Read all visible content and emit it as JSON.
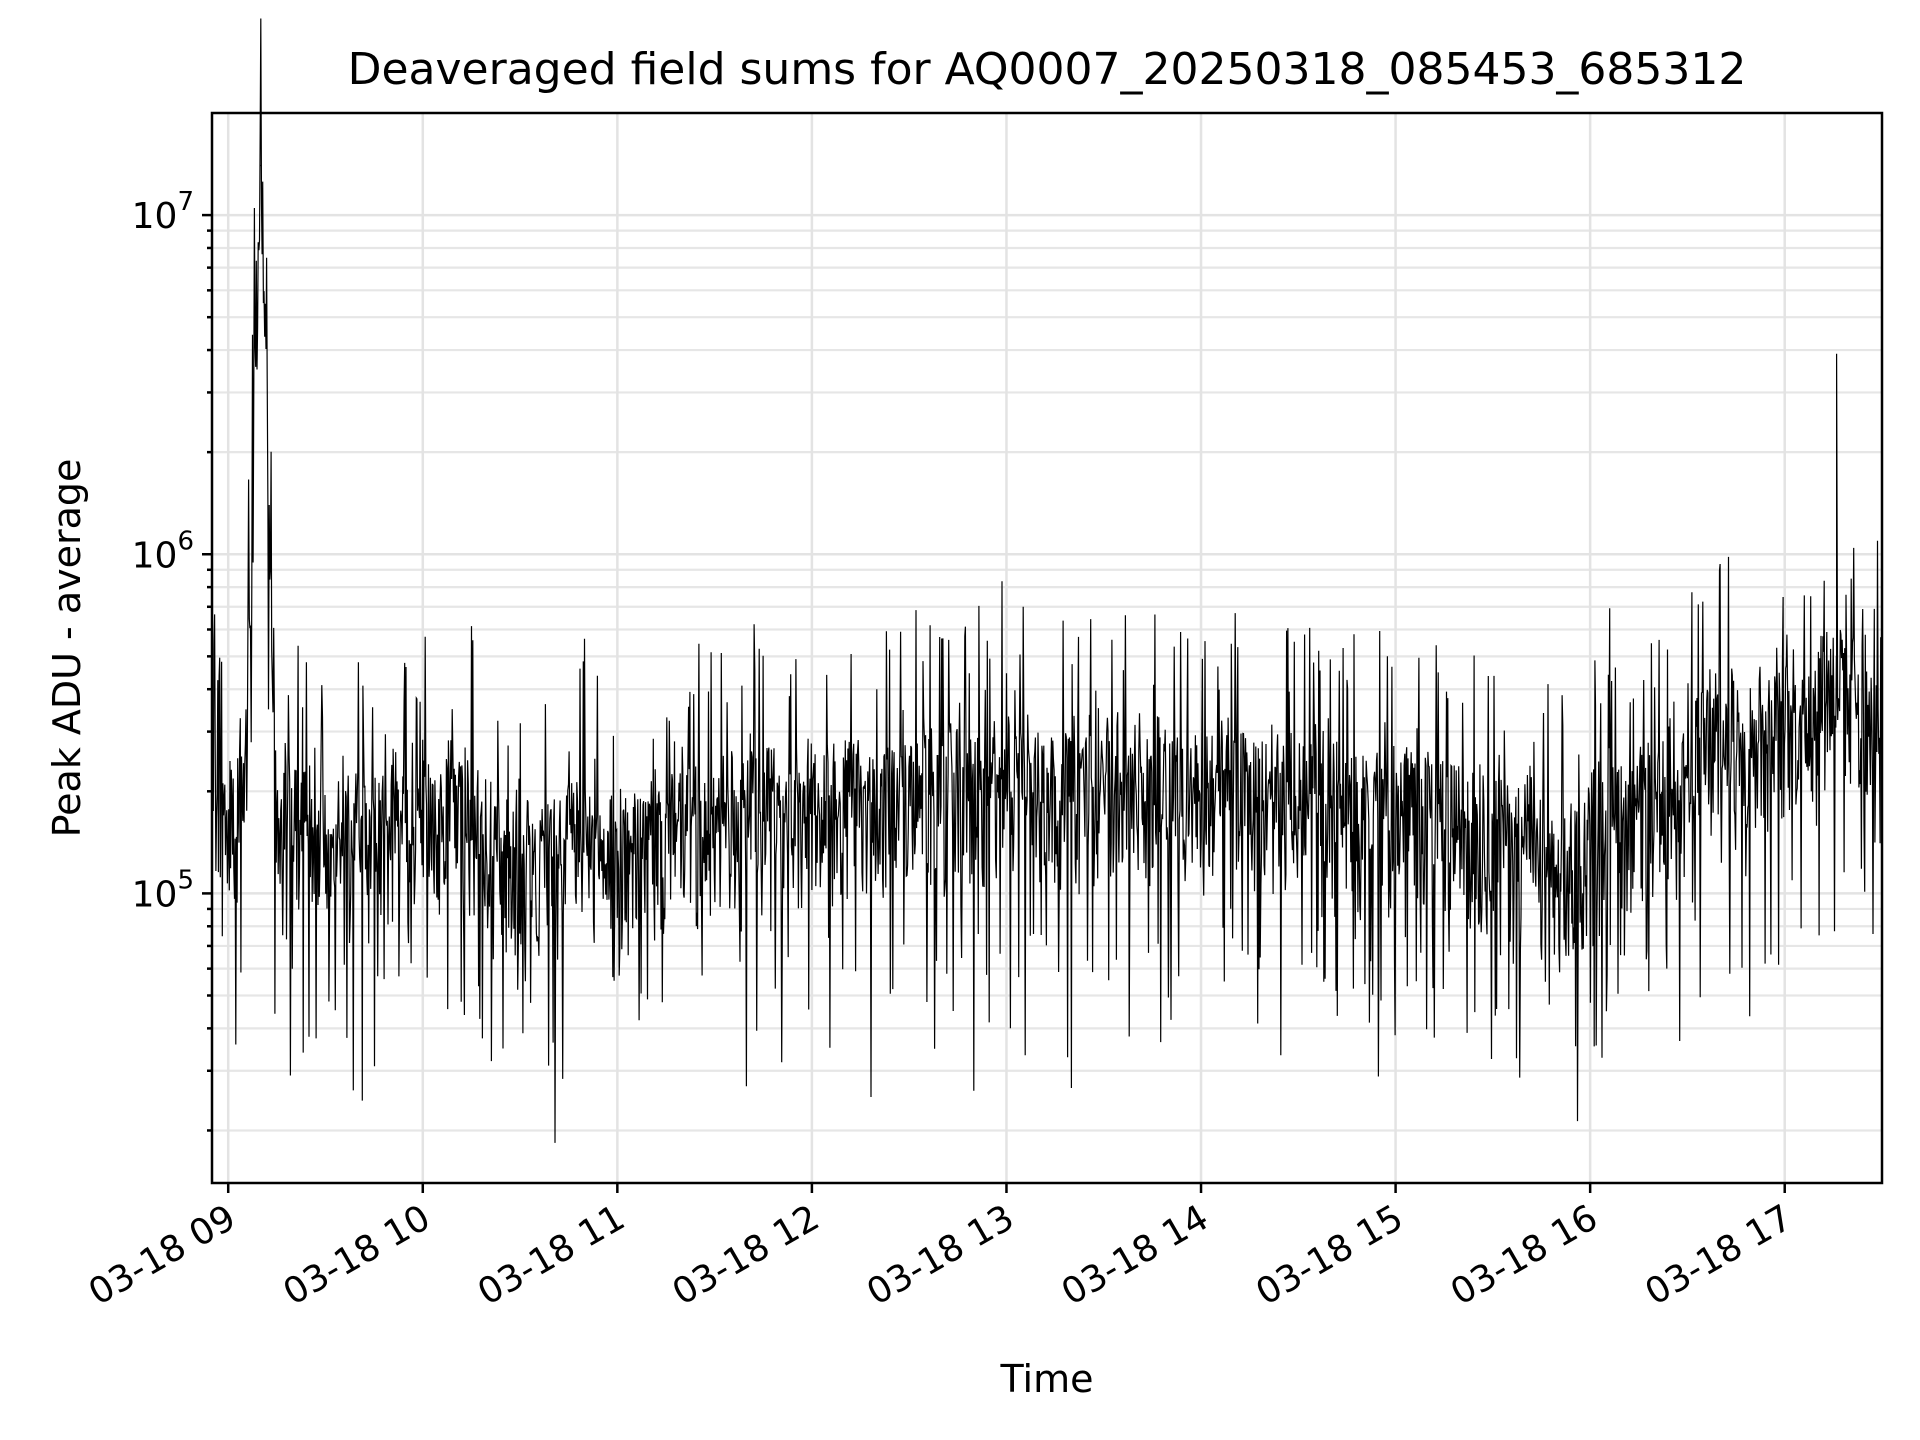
{
  "chart_data": {
    "type": "line",
    "title": "Deaveraged field sums for AQ0007_20250318_085453_685312",
    "xlabel": "Time",
    "ylabel": "Peak ADU - average",
    "yscale": "log",
    "ylim": [
      14000,
      20000000
    ],
    "xlim": [
      "2025-03-18 08:55",
      "2025-03-18 17:30"
    ],
    "grid": true,
    "legend": "none",
    "line_color": "#000000",
    "x_ticks": [
      "03-18 09",
      "03-18 10",
      "03-18 11",
      "03-18 12",
      "03-18 13",
      "03-18 14",
      "03-18 15",
      "03-18 16",
      "03-18 17"
    ],
    "y_ticks": [
      {
        "value": 100000,
        "base": "10",
        "exp": "5"
      },
      {
        "value": 1000000,
        "base": "10",
        "exp": "6"
      },
      {
        "value": 10000000,
        "base": "10",
        "exp": "7"
      }
    ],
    "series": [
      {
        "points": [
          [
            "2025-03-18 08:55",
            180000
          ],
          [
            "2025-03-18 09:00",
            140000
          ],
          [
            "2025-03-18 09:05",
            190000
          ],
          [
            "2025-03-18 09:10",
            14000000
          ],
          [
            "2025-03-18 09:15",
            150000
          ],
          [
            "2025-03-18 09:20",
            160000
          ],
          [
            "2025-03-18 09:25",
            140000
          ],
          [
            "2025-03-18 09:30",
            130000
          ],
          [
            "2025-03-18 09:35",
            135000
          ],
          [
            "2025-03-18 09:40",
            140000
          ],
          [
            "2025-03-18 09:45",
            130000
          ],
          [
            "2025-03-18 09:50",
            140000
          ],
          [
            "2025-03-18 09:55",
            135000
          ],
          [
            "2025-03-18 10:00",
            150000
          ],
          [
            "2025-03-18 10:05",
            170000
          ],
          [
            "2025-03-18 10:10",
            180000
          ],
          [
            "2025-03-18 10:15",
            150000
          ],
          [
            "2025-03-18 10:20",
            130000
          ],
          [
            "2025-03-18 10:25",
            120000
          ],
          [
            "2025-03-18 10:30",
            125000
          ],
          [
            "2025-03-18 10:35",
            110000
          ],
          [
            "2025-03-18 10:40",
            120000
          ],
          [
            "2025-03-18 10:45",
            130000
          ],
          [
            "2025-03-18 10:50",
            135000
          ],
          [
            "2025-03-18 10:55",
            125000
          ],
          [
            "2025-03-18 11:00",
            120000
          ],
          [
            "2025-03-18 11:05",
            115000
          ],
          [
            "2025-03-18 11:10",
            120000
          ],
          [
            "2025-03-18 11:15",
            130000
          ],
          [
            "2025-03-18 11:20",
            145000
          ],
          [
            "2025-03-18 11:25",
            150000
          ],
          [
            "2025-03-18 11:30",
            155000
          ],
          [
            "2025-03-18 11:35",
            160000
          ],
          [
            "2025-03-18 11:40",
            165000
          ],
          [
            "2025-03-18 11:45",
            170000
          ],
          [
            "2025-03-18 11:50",
            160000
          ],
          [
            "2025-03-18 11:55",
            155000
          ],
          [
            "2025-03-18 12:00",
            170000
          ],
          [
            "2025-03-18 12:05",
            175000
          ],
          [
            "2025-03-18 12:10",
            165000
          ],
          [
            "2025-03-18 12:15",
            170000
          ],
          [
            "2025-03-18 12:20",
            160000
          ],
          [
            "2025-03-18 12:25",
            175000
          ],
          [
            "2025-03-18 12:30",
            180000
          ],
          [
            "2025-03-18 12:35",
            185000
          ],
          [
            "2025-03-18 12:40",
            190000
          ],
          [
            "2025-03-18 12:45",
            180000
          ],
          [
            "2025-03-18 12:50",
            185000
          ],
          [
            "2025-03-18 12:55",
            190000
          ],
          [
            "2025-03-18 13:00",
            195000
          ],
          [
            "2025-03-18 13:05",
            200000
          ],
          [
            "2025-03-18 13:10",
            190000
          ],
          [
            "2025-03-18 13:15",
            185000
          ],
          [
            "2025-03-18 13:20",
            180000
          ],
          [
            "2025-03-18 13:25",
            185000
          ],
          [
            "2025-03-18 13:30",
            190000
          ],
          [
            "2025-03-18 13:35",
            195000
          ],
          [
            "2025-03-18 13:40",
            190000
          ],
          [
            "2025-03-18 13:45",
            200000
          ],
          [
            "2025-03-18 13:50",
            195000
          ],
          [
            "2025-03-18 13:55",
            190000
          ],
          [
            "2025-03-18 14:00",
            185000
          ],
          [
            "2025-03-18 14:05",
            180000
          ],
          [
            "2025-03-18 14:10",
            190000
          ],
          [
            "2025-03-18 14:15",
            185000
          ],
          [
            "2025-03-18 14:20",
            175000
          ],
          [
            "2025-03-18 14:25",
            180000
          ],
          [
            "2025-03-18 14:30",
            170000
          ],
          [
            "2025-03-18 14:35",
            175000
          ],
          [
            "2025-03-18 14:40",
            180000
          ],
          [
            "2025-03-18 14:45",
            170000
          ],
          [
            "2025-03-18 14:50",
            165000
          ],
          [
            "2025-03-18 14:55",
            160000
          ],
          [
            "2025-03-18 15:00",
            155000
          ],
          [
            "2025-03-18 15:05",
            165000
          ],
          [
            "2025-03-18 15:10",
            160000
          ],
          [
            "2025-03-18 15:15",
            150000
          ],
          [
            "2025-03-18 15:20",
            145000
          ],
          [
            "2025-03-18 15:25",
            140000
          ],
          [
            "2025-03-18 15:30",
            135000
          ],
          [
            "2025-03-18 15:35",
            130000
          ],
          [
            "2025-03-18 15:40",
            120000
          ],
          [
            "2025-03-18 15:45",
            110000
          ],
          [
            "2025-03-18 15:50",
            90000
          ],
          [
            "2025-03-18 15:55",
            100000
          ],
          [
            "2025-03-18 16:00",
            140000
          ],
          [
            "2025-03-18 16:05",
            170000
          ],
          [
            "2025-03-18 16:10",
            160000
          ],
          [
            "2025-03-18 16:15",
            150000
          ],
          [
            "2025-03-18 16:20",
            165000
          ],
          [
            "2025-03-18 16:25",
            180000
          ],
          [
            "2025-03-18 16:30",
            220000
          ],
          [
            "2025-03-18 16:35",
            250000
          ],
          [
            "2025-03-18 16:40",
            280000
          ],
          [
            "2025-03-18 16:45",
            270000
          ],
          [
            "2025-03-18 16:50",
            260000
          ],
          [
            "2025-03-18 16:55",
            280000
          ],
          [
            "2025-03-18 17:00",
            300000
          ],
          [
            "2025-03-18 17:05",
            320000
          ],
          [
            "2025-03-18 17:10",
            340000
          ],
          [
            "2025-03-18 17:15",
            380000
          ],
          [
            "2025-03-18 17:20",
            360000
          ],
          [
            "2025-03-18 17:25",
            340000
          ],
          [
            "2025-03-18 17:30",
            330000
          ]
        ],
        "spikes": [
          [
            "2025-03-18 09:10",
            14000000
          ],
          [
            "2025-03-18 17:16",
            3900000
          ]
        ]
      }
    ]
  }
}
